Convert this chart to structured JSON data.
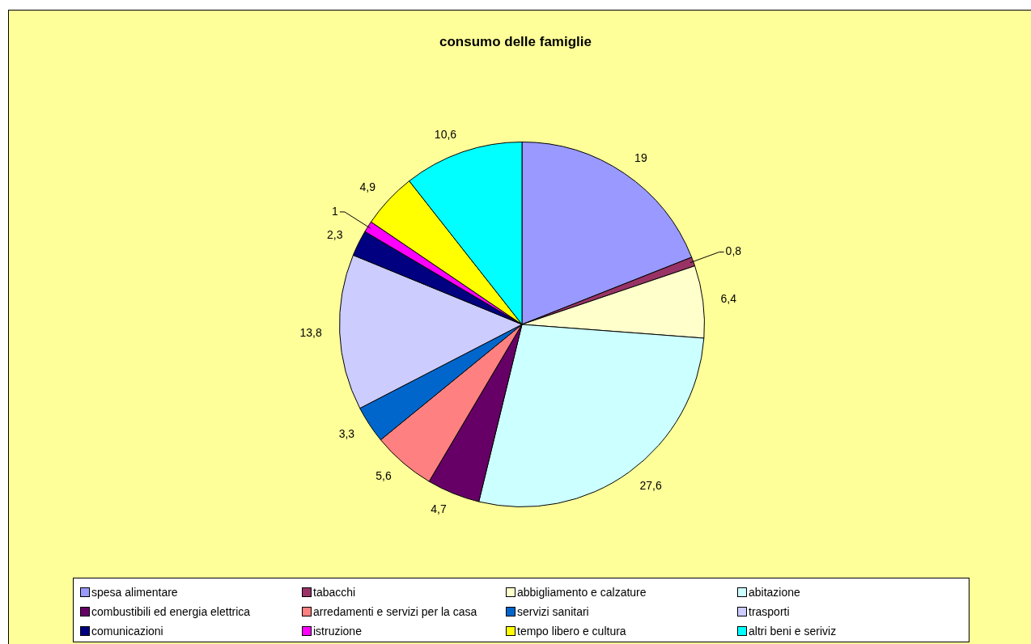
{
  "chart_data": {
    "type": "pie",
    "title": "consumo delle famiglie",
    "categories": [
      "spesa alimentare",
      "tabacchi",
      "abbigliamento e calzature",
      "abitazione",
      "combustibili ed energia elettrica",
      "arredamenti e servizi per la casa",
      "servizi sanitari",
      "trasporti",
      "comunicazioni",
      "istruzione",
      "tempo libero e cultura",
      "altri beni e seriviz"
    ],
    "values": [
      19,
      0.8,
      6.4,
      27.6,
      4.7,
      5.6,
      3.3,
      13.8,
      2.3,
      1,
      4.9,
      10.6
    ],
    "value_labels": [
      "19",
      "0,8",
      "6,4",
      "27,6",
      "4,7",
      "5,6",
      "3,3",
      "13,8",
      "2,3",
      "1",
      "4,9",
      "10,6"
    ],
    "colors": [
      "#9999ff",
      "#993366",
      "#ffffcc",
      "#ccffff",
      "#660066",
      "#ff8080",
      "#0066cc",
      "#ccccff",
      "#000080",
      "#ff00ff",
      "#ffff00",
      "#00ffff"
    ],
    "legend": "bottom"
  }
}
